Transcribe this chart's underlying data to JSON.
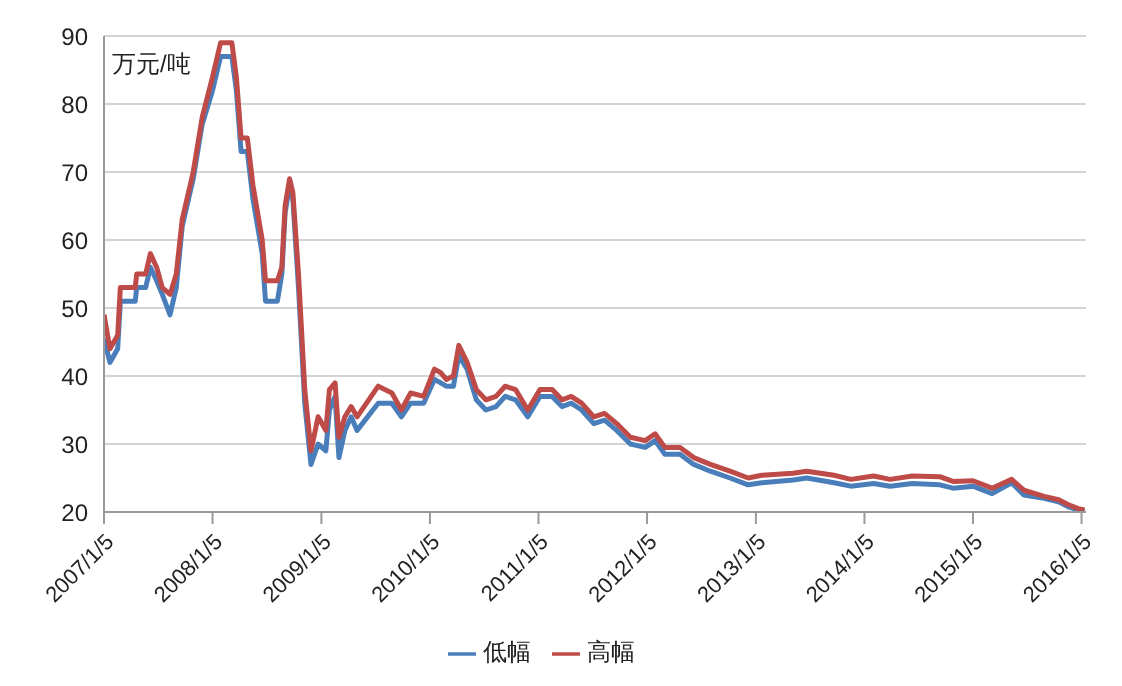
{
  "chart_data": {
    "type": "line",
    "ylabel": "万元/吨",
    "x": [
      "2007-01-05",
      "2007-01-25",
      "2007-02-20",
      "2007-03-01",
      "2007-04-20",
      "2007-04-25",
      "2007-05-25",
      "2007-06-10",
      "2007-07-01",
      "2007-07-20",
      "2007-08-15",
      "2007-09-05",
      "2007-09-25",
      "2007-11-01",
      "2007-12-01",
      "2008-01-05",
      "2008-02-01",
      "2008-03-10",
      "2008-03-25",
      "2008-04-10",
      "2008-05-01",
      "2008-05-20",
      "2008-06-20",
      "2008-07-01",
      "2008-08-10",
      "2008-08-25",
      "2008-09-05",
      "2008-09-20",
      "2008-10-01",
      "2008-10-20",
      "2008-11-10",
      "2008-12-01",
      "2008-12-25",
      "2009-01-20",
      "2009-02-01",
      "2009-02-20",
      "2009-03-05",
      "2009-03-25",
      "2009-04-15",
      "2009-05-05",
      "2009-07-15",
      "2009-08-30",
      "2009-10-01",
      "2009-11-01",
      "2009-12-15",
      "2010-01-20",
      "2010-02-10",
      "2010-03-01",
      "2010-03-25",
      "2010-04-12",
      "2010-05-10",
      "2010-06-10",
      "2010-07-12",
      "2010-08-15",
      "2010-09-15",
      "2010-10-20",
      "2010-11-30",
      "2011-01-10",
      "2011-02-20",
      "2011-03-25",
      "2011-04-25",
      "2011-05-30",
      "2011-07-10",
      "2011-08-15",
      "2011-09-25",
      "2011-11-10",
      "2011-12-30",
      "2012-02-01",
      "2012-03-05",
      "2012-04-25",
      "2012-06-10",
      "2012-08-05",
      "2012-10-10",
      "2012-12-10",
      "2013-01-25",
      "2013-05-10",
      "2013-06-25",
      "2013-09-25",
      "2013-11-20",
      "2014-02-05",
      "2014-04-01",
      "2014-06-15",
      "2014-09-15",
      "2014-10-30",
      "2015-01-05",
      "2015-03-10",
      "2015-05-15",
      "2015-06-25",
      "2015-09-01",
      "2015-10-20",
      "2015-11-20",
      "2015-12-25",
      "2016-01-15"
    ],
    "series": [
      {
        "name": "低幅",
        "color": "#4a7ebb",
        "values": [
          45.5,
          42,
          44,
          51,
          51,
          53,
          53,
          56,
          54,
          52,
          49,
          53,
          62,
          69,
          77,
          82,
          87,
          87,
          82,
          73,
          73,
          66,
          58,
          51,
          51,
          55,
          64,
          68,
          66,
          53,
          36,
          27,
          30,
          29,
          35,
          37,
          28,
          32,
          34,
          32,
          36,
          36,
          34,
          36,
          36,
          39.5,
          39,
          38.5,
          38.5,
          43,
          41,
          36.5,
          35,
          35.5,
          37,
          36.5,
          34,
          37,
          37,
          35.5,
          36,
          35,
          33,
          33.5,
          32,
          30,
          29.5,
          30.5,
          28.5,
          28.5,
          27,
          26,
          25,
          24,
          24.3,
          24.7,
          25,
          24.3,
          23.8,
          24.2,
          23.8,
          24.2,
          24,
          23.5,
          23.8,
          22.7,
          24.3,
          22.5,
          22,
          21.5,
          20.8,
          20.3,
          20.1
        ]
      },
      {
        "name": "高幅",
        "color": "#be4b48",
        "values": [
          49,
          44,
          46,
          53,
          53,
          55,
          55,
          58,
          56,
          53,
          52,
          55,
          63,
          70,
          78,
          84,
          89,
          89,
          84,
          75,
          75,
          68,
          60,
          54,
          54,
          56,
          65,
          69,
          67,
          55,
          38,
          29,
          34,
          32,
          38,
          39,
          31,
          34,
          35.5,
          34,
          38.5,
          37.5,
          35,
          37.5,
          37,
          41,
          40.5,
          39.5,
          40,
          44.5,
          42,
          38,
          36.5,
          37,
          38.5,
          38,
          35,
          38,
          38,
          36.5,
          37,
          36,
          34,
          34.5,
          33,
          31,
          30.5,
          31.5,
          29.5,
          29.5,
          28,
          27,
          26,
          25,
          25.4,
          25.7,
          26,
          25.4,
          24.8,
          25.3,
          24.8,
          25.3,
          25.2,
          24.5,
          24.6,
          23.5,
          24.8,
          23.2,
          22.3,
          21.8,
          21.1,
          20.5,
          20.3
        ]
      }
    ],
    "xlim": [
      "2007-01-05",
      "2016-01-20"
    ],
    "xticks": [
      {
        "value": "2007-01-05",
        "label": "2007/1/5"
      },
      {
        "value": "2008-01-05",
        "label": "2008/1/5"
      },
      {
        "value": "2009-01-05",
        "label": "2009/1/5"
      },
      {
        "value": "2010-01-05",
        "label": "2010/1/5"
      },
      {
        "value": "2011-01-05",
        "label": "2011/1/5"
      },
      {
        "value": "2012-01-05",
        "label": "2012/1/5"
      },
      {
        "value": "2013-01-05",
        "label": "2013/1/5"
      },
      {
        "value": "2014-01-05",
        "label": "2014/1/5"
      },
      {
        "value": "2015-01-05",
        "label": "2015/1/5"
      },
      {
        "value": "2016-01-05",
        "label": "2016/1/5"
      }
    ],
    "ylim": [
      20,
      90
    ],
    "yticks": [
      20,
      30,
      40,
      50,
      60,
      70,
      80,
      90
    ],
    "grid": "y",
    "legend": "bottom",
    "marker": "none",
    "line_style": "solid"
  }
}
